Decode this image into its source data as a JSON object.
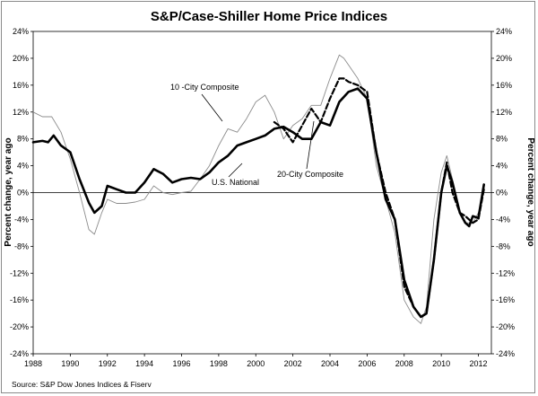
{
  "chart_data": {
    "type": "line",
    "title": "S&P/Case-Shiller Home Price Indices",
    "ylabel_left": "Percent change, year ago",
    "ylabel_right": "Percent change, year ago",
    "source": "Source: S&P Dow Jones Indices & Fiserv",
    "xlim": [
      1988,
      2012.7
    ],
    "ylim": [
      -24,
      24
    ],
    "x_ticks": [
      "1988",
      "1990",
      "1992",
      "1994",
      "1996",
      "1998",
      "2000",
      "2002",
      "2004",
      "2006",
      "2008",
      "2010",
      "2012"
    ],
    "y_ticks": [
      "24%",
      "20%",
      "16%",
      "12%",
      "8%",
      "4%",
      "0%",
      "-4%",
      "-8%",
      "-12%",
      "-16%",
      "-20%",
      "-24%"
    ],
    "annotations": {
      "ten_city": "10 -City Composite",
      "national": "U.S. National",
      "twenty_city": "20-City Composite"
    },
    "series": [
      {
        "name": "10 -City Composite",
        "color": "#8c8c8c",
        "style": "thin",
        "x": [
          1988,
          1988.5,
          1989,
          1989.5,
          1990,
          1990.5,
          1991,
          1991.3,
          1991.7,
          1992,
          1992.5,
          1993,
          1993.5,
          1994,
          1994.5,
          1995,
          1995.5,
          1996,
          1996.5,
          1997,
          1997.5,
          1998,
          1998.5,
          1999,
          1999.5,
          2000,
          2000.5,
          2001,
          2001.5,
          2002,
          2002.5,
          2003,
          2003.5,
          2004,
          2004.5,
          2004.75,
          2005,
          2005.5,
          2006,
          2006.5,
          2007,
          2007.5,
          2008,
          2008.5,
          2008.9,
          2009.2,
          2009.6,
          2010,
          2010.3,
          2010.6,
          2011,
          2011.3,
          2011.7,
          2012,
          2012.3
        ],
        "y": [
          12,
          11.3,
          11.3,
          9,
          5,
          0,
          -5.5,
          -6.2,
          -3,
          -1,
          -1.6,
          -1.6,
          -1.4,
          -1,
          1,
          0,
          -0.3,
          0,
          0.2,
          2,
          4,
          7,
          9.5,
          9,
          11,
          13.5,
          14.5,
          12,
          8,
          10,
          11,
          13,
          13,
          17,
          20.5,
          20,
          19,
          17,
          14,
          4,
          -1,
          -6,
          -16,
          -18.5,
          -19.5,
          -17,
          -4,
          3,
          5.5,
          2,
          -3,
          -4.5,
          -4.5,
          -3,
          0
        ]
      },
      {
        "name": "20-City Composite",
        "color": "#000000",
        "style": "dashed",
        "x": [
          2001,
          2001.5,
          2002,
          2002.5,
          2003,
          2003.5,
          2004,
          2004.5,
          2004.75,
          2005,
          2005.5,
          2006,
          2006.5,
          2007,
          2007.5,
          2008,
          2008.5,
          2008.9,
          2009.2,
          2009.6,
          2010,
          2010.3,
          2010.6,
          2011,
          2011.3,
          2011.7,
          2012,
          2012.3
        ],
        "y": [
          10.5,
          9.5,
          7.5,
          10,
          12.5,
          10.5,
          14,
          17,
          17,
          16.5,
          16,
          15,
          6,
          0,
          -4,
          -14,
          -17,
          -18.5,
          -18,
          -10,
          0,
          4.5,
          0,
          -3,
          -3.5,
          -4.5,
          -4,
          0.5
        ]
      },
      {
        "name": "U.S. National",
        "color": "#000000",
        "style": "thick",
        "x": [
          1988,
          1988.5,
          1988.8,
          1989.1,
          1989.5,
          1990,
          1990.5,
          1991,
          1991.3,
          1991.7,
          1992,
          1992.5,
          1993,
          1993.5,
          1994,
          1994.5,
          1995,
          1995.5,
          1996,
          1996.5,
          1997,
          1997.5,
          1998,
          1998.5,
          1999,
          1999.5,
          2000,
          2000.5,
          2001,
          2001.5,
          2002,
          2002.5,
          2003,
          2003.5,
          2004,
          2004.5,
          2005,
          2005.5,
          2006,
          2006.5,
          2007,
          2007.5,
          2008,
          2008.5,
          2008.9,
          2009.2,
          2009.6,
          2010,
          2010.3,
          2010.6,
          2011,
          2011.3,
          2011.5,
          2011.7,
          2012,
          2012.3
        ],
        "y": [
          7.5,
          7.7,
          7.5,
          8.5,
          7,
          6,
          2,
          -1.5,
          -3,
          -2,
          1,
          0.5,
          0,
          0,
          1.5,
          3.5,
          2.8,
          1.5,
          2,
          2.2,
          2,
          3,
          4.5,
          5.5,
          7,
          7.5,
          8,
          8.5,
          9.5,
          9.8,
          9,
          8,
          8,
          10.5,
          10,
          13.5,
          15,
          15.5,
          14,
          6,
          -1,
          -4,
          -13,
          -17,
          -18.5,
          -18,
          -10,
          0,
          4,
          1.5,
          -3,
          -4.5,
          -5,
          -3.5,
          -3.8,
          1.2
        ]
      }
    ]
  }
}
